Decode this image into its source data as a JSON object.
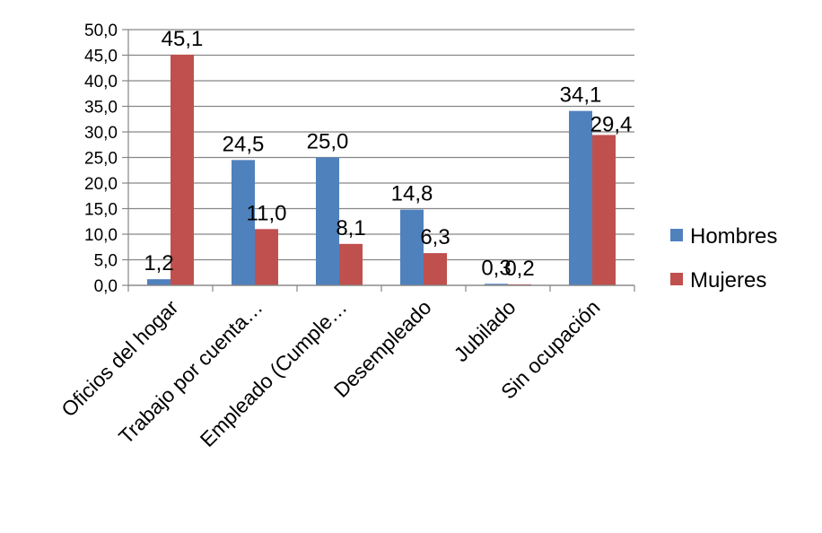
{
  "chart_data": {
    "type": "bar",
    "categories": [
      "Oficios del hogar",
      "Trabajo por cuenta…",
      "Empleado  (Cumple…",
      "Desempleado",
      "Jubilado",
      "Sin ocupación"
    ],
    "series": [
      {
        "name": "Hombres",
        "values": [
          1.2,
          24.5,
          25.0,
          14.8,
          0.3,
          34.1
        ],
        "labels": [
          "1,2",
          "24,5",
          "25,0",
          "14,8",
          "0,3",
          "34,1"
        ],
        "color": "#4f81bd"
      },
      {
        "name": "Mujeres",
        "values": [
          45.1,
          11.0,
          8.1,
          6.3,
          0.2,
          29.4
        ],
        "labels": [
          "45,1",
          "11,0",
          "8,1",
          "6,3",
          "0,2",
          "29,4"
        ],
        "color": "#c0504d"
      }
    ],
    "ylim": [
      0,
      50
    ],
    "yticks": [
      "0,0",
      "5,0",
      "10,0",
      "15,0",
      "20,0",
      "25,0",
      "30,0",
      "35,0",
      "40,0",
      "45,0",
      "50,0"
    ],
    "grid": true,
    "legend": "right",
    "xlabel": "",
    "ylabel": "",
    "title": ""
  }
}
